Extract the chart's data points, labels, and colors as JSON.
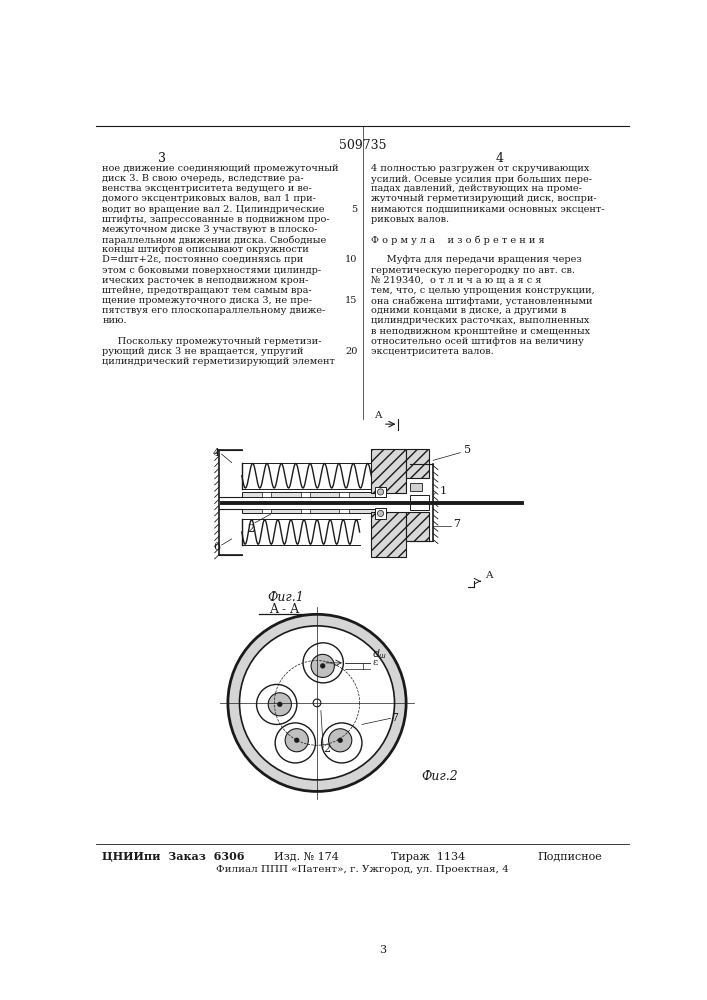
{
  "page_number": "509735",
  "page_col_left": "3",
  "page_col_right": "4",
  "bg_color": "#ffffff",
  "text_color": "#1a1a1a",
  "body_fontsize": 7.0,
  "left_column_text": [
    "ное движение соединяющий промежуточный",
    "диск 3. В свою очередь, вследствие ра-",
    "венства эксцентриситета ведущего и ве-",
    "домого эксцентриковых валов, вал 1 при-",
    "водит во вращение вал 2. Цилиндрические",
    "штифты, запрессованные в подвижном про-",
    "межуточном диске 3 участвуют в плоско-",
    "параллельном движении диска. Свободные",
    "концы штифтов описывают окружности",
    "D=dшт+2ε, постоянно соединяясь при",
    "этом с боковыми поверхностями цилиндр-",
    "ических расточек в неподвижном крон-",
    "штейне, предотвращают тем самым вра-",
    "щение промежуточного диска 3, не пре-",
    "пятствуя его плоскопараллельному движе-",
    "нию.",
    "",
    "     Поскольку промежуточный герметизи-",
    "рующий диск 3 не вращается, упругий",
    "цилиндрический герметизирующий элемент"
  ],
  "right_column_text": [
    "4 полностью разгружен от скручивающих",
    "усилий. Осевые усилия при больших пере-",
    "падах давлений, действующих на проме-",
    "жуточный герметизирующий диск, воспри-",
    "нимаются подшипниками основных эксцент-",
    "риковых валов.",
    "",
    "Ф о р м у л а    и з о б р е т е н и я",
    "",
    "     Муфта для передачи вращения через",
    "герметическую перегородку по авт. св.",
    "№ 219340,  о т л и ч а ю щ а я с я",
    "тем, что, с целью упрощения конструкции,",
    "она снабжена штифтами, установленными",
    "одними концами в диске, а другими в",
    "цилиндрических расточках, выполненных",
    "в неподвижном кронштейне и смещенных",
    "относительно осей штифтов на величину",
    "эксцентриситета валов."
  ],
  "line_num_map": {
    "4": 5,
    "9": 10,
    "13": 15,
    "18": 20
  },
  "fig1_label": "Фиг.1",
  "fig2_label": "Фиг.2",
  "section_label": "A - A",
  "footer_left": "ЦНИИпи  Заказ  6306",
  "footer_mid1": "Изд. № 174",
  "footer_mid2": "Тираж  1134",
  "footer_right": "Подписное",
  "footer_bottom": "Филиал ППП «Патент», г. Ужгород, ул. Проектная, 4"
}
